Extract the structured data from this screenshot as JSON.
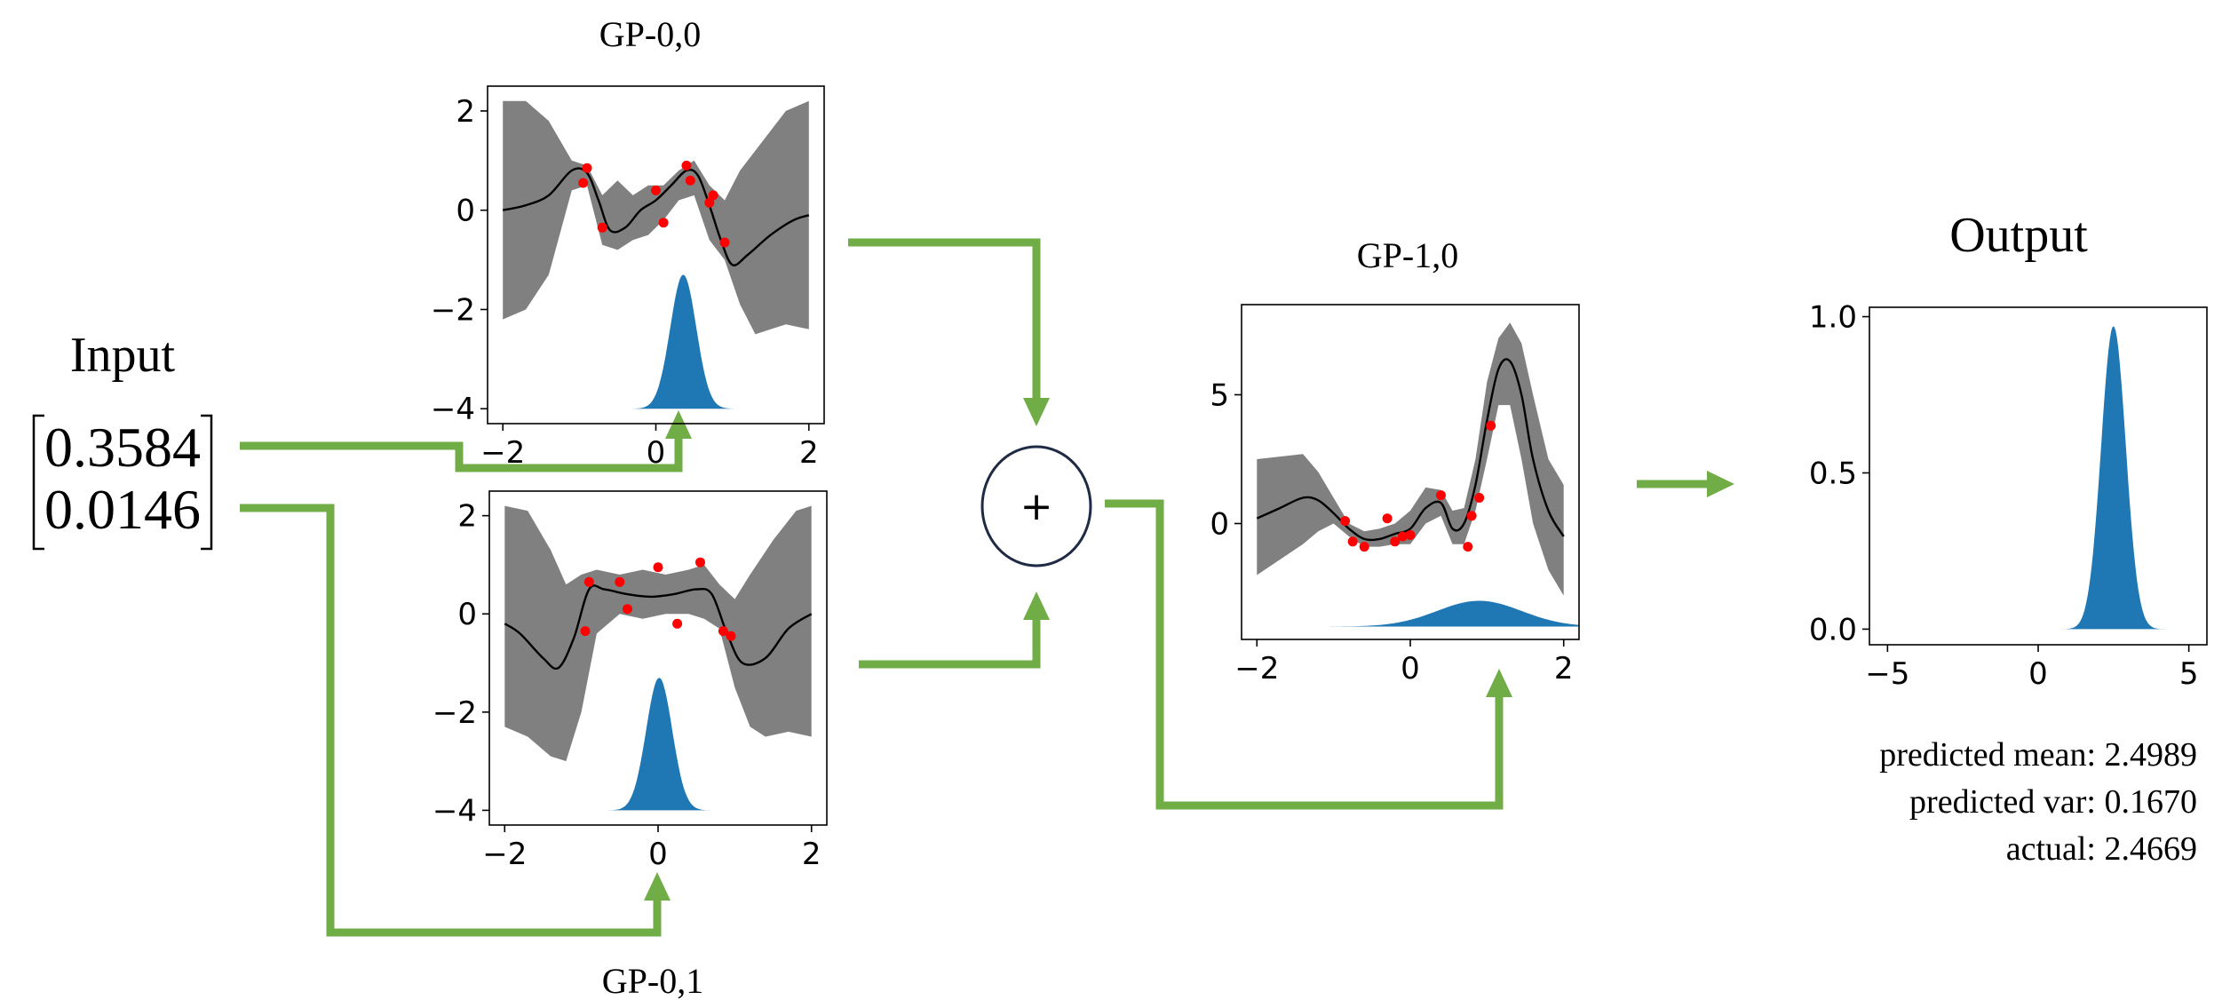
{
  "input": {
    "title": "Input",
    "values": [
      "0.3584",
      "0.0146"
    ]
  },
  "nodes": {
    "gp00": {
      "title": "GP-0,0"
    },
    "gp01": {
      "title": "GP-0,1"
    },
    "gp10": {
      "title": "GP-1,0"
    },
    "sum": {
      "symbol": "+"
    }
  },
  "output": {
    "title": "Output",
    "stats": [
      "predicted mean: 2.4989",
      "predicted var: 0.1670",
      "actual: 2.4669"
    ]
  },
  "colors": {
    "arrow": "#70ad47",
    "band": "#808080",
    "density": "#1f77b4",
    "points": "#ff0000"
  },
  "chart_data": [
    {
      "id": "gp00",
      "type": "line",
      "title": "GP-0,0",
      "xlim": [
        -2.2,
        2.2
      ],
      "ylim": [
        -4.3,
        2.5
      ],
      "xticks": [
        -2,
        0,
        2
      ],
      "yticks": [
        2,
        0,
        -2,
        -4
      ],
      "mean": {
        "x": [
          -2.0,
          -1.7,
          -1.4,
          -1.1,
          -0.9,
          -0.75,
          -0.6,
          -0.4,
          -0.2,
          0.0,
          0.2,
          0.4,
          0.55,
          0.7,
          0.85,
          1.0,
          1.2,
          1.5,
          1.8,
          2.0
        ],
        "y": [
          0.0,
          0.1,
          0.3,
          0.8,
          0.75,
          0.2,
          -0.4,
          -0.35,
          0.0,
          0.2,
          0.5,
          0.8,
          0.7,
          0.1,
          -0.6,
          -1.1,
          -0.9,
          -0.5,
          -0.2,
          -0.1
        ]
      },
      "upper": {
        "x": [
          -2.0,
          -1.7,
          -1.4,
          -1.1,
          -0.9,
          -0.7,
          -0.5,
          -0.3,
          -0.1,
          0.1,
          0.3,
          0.5,
          0.7,
          0.9,
          1.1,
          1.3,
          1.5,
          1.7,
          2.0
        ],
        "y": [
          2.2,
          2.2,
          1.8,
          1.0,
          0.9,
          0.3,
          0.6,
          0.3,
          0.5,
          0.5,
          0.8,
          1.0,
          0.5,
          0.2,
          0.8,
          1.2,
          1.6,
          2.0,
          2.2
        ]
      },
      "lower": {
        "x": [
          -2.0,
          -1.7,
          -1.4,
          -1.1,
          -0.9,
          -0.7,
          -0.5,
          -0.3,
          -0.1,
          0.1,
          0.3,
          0.5,
          0.7,
          0.9,
          1.1,
          1.3,
          1.5,
          1.7,
          2.0
        ],
        "y": [
          -2.2,
          -2.0,
          -1.3,
          0.4,
          0.5,
          -0.7,
          -0.8,
          -0.6,
          -0.5,
          -0.2,
          0.2,
          0.3,
          -0.6,
          -1.0,
          -1.9,
          -2.5,
          -2.4,
          -2.3,
          -2.4
        ]
      },
      "points": {
        "x": [
          -0.9,
          -0.95,
          -0.7,
          0.0,
          0.1,
          0.4,
          0.45,
          0.75,
          0.7,
          0.9
        ],
        "y": [
          0.85,
          0.55,
          -0.35,
          0.4,
          -0.25,
          0.9,
          0.6,
          0.3,
          0.15,
          -0.65
        ]
      },
      "density": {
        "mu": 0.3584,
        "sigma": 0.17,
        "peak": -1.3,
        "base": -4.0
      }
    },
    {
      "id": "gp01",
      "type": "line",
      "title": "GP-0,1",
      "xlim": [
        -2.2,
        2.2
      ],
      "ylim": [
        -4.3,
        2.5
      ],
      "xticks": [
        -2,
        0,
        2
      ],
      "yticks": [
        2,
        0,
        -2,
        -4
      ],
      "mean": {
        "x": [
          -2.0,
          -1.8,
          -1.5,
          -1.3,
          -1.1,
          -0.9,
          -0.7,
          -0.4,
          -0.1,
          0.2,
          0.5,
          0.7,
          0.9,
          1.1,
          1.4,
          1.7,
          2.0
        ],
        "y": [
          -0.2,
          -0.4,
          -0.9,
          -1.1,
          -0.5,
          0.5,
          0.5,
          0.4,
          0.35,
          0.4,
          0.5,
          0.4,
          -0.4,
          -1.0,
          -0.9,
          -0.3,
          0.0
        ]
      },
      "upper": {
        "x": [
          -2.0,
          -1.7,
          -1.4,
          -1.2,
          -1.0,
          -0.8,
          -0.5,
          -0.2,
          0.1,
          0.4,
          0.6,
          0.8,
          1.0,
          1.2,
          1.5,
          1.8,
          2.0
        ],
        "y": [
          2.2,
          2.1,
          1.3,
          0.6,
          0.8,
          0.9,
          0.8,
          0.9,
          0.8,
          0.9,
          1.0,
          0.6,
          0.3,
          0.8,
          1.5,
          2.1,
          2.2
        ]
      },
      "lower": {
        "x": [
          -2.0,
          -1.7,
          -1.4,
          -1.2,
          -1.0,
          -0.8,
          -0.5,
          -0.2,
          0.1,
          0.4,
          0.6,
          0.8,
          1.0,
          1.2,
          1.4,
          1.7,
          2.0
        ],
        "y": [
          -2.3,
          -2.5,
          -2.9,
          -3.0,
          -2.0,
          -0.4,
          0.0,
          -0.1,
          0.0,
          0.0,
          -0.1,
          -0.3,
          -1.5,
          -2.3,
          -2.5,
          -2.4,
          -2.5
        ]
      },
      "points": {
        "x": [
          -0.9,
          -0.95,
          -0.5,
          -0.4,
          0.0,
          0.25,
          0.55,
          0.85,
          0.95
        ],
        "y": [
          0.65,
          -0.35,
          0.65,
          0.1,
          0.95,
          -0.2,
          1.05,
          -0.35,
          -0.45
        ]
      },
      "density": {
        "mu": 0.0146,
        "sigma": 0.17,
        "peak": -1.3,
        "base": -4.0
      }
    },
    {
      "id": "gp10",
      "type": "line",
      "title": "GP-1,0",
      "xlim": [
        -2.2,
        2.2
      ],
      "ylim": [
        -4.5,
        8.5
      ],
      "xticks": [
        -2,
        0,
        2
      ],
      "yticks": [
        5,
        0
      ],
      "mean": {
        "x": [
          -2.0,
          -1.7,
          -1.4,
          -1.2,
          -1.0,
          -0.8,
          -0.6,
          -0.4,
          -0.2,
          0.0,
          0.2,
          0.4,
          0.55,
          0.7,
          0.85,
          1.0,
          1.15,
          1.3,
          1.45,
          1.6,
          1.8,
          2.0
        ],
        "y": [
          0.2,
          0.6,
          1.0,
          0.9,
          0.4,
          -0.2,
          -0.6,
          -0.6,
          -0.4,
          -0.2,
          0.6,
          0.8,
          -0.2,
          0.0,
          1.5,
          4.0,
          6.0,
          6.3,
          5.0,
          2.5,
          0.5,
          -0.5
        ]
      },
      "upper": {
        "x": [
          -2.0,
          -1.7,
          -1.4,
          -1.2,
          -1.0,
          -0.8,
          -0.6,
          -0.4,
          -0.2,
          0.0,
          0.2,
          0.4,
          0.55,
          0.7,
          0.85,
          1.0,
          1.15,
          1.3,
          1.45,
          1.6,
          1.8,
          2.0
        ],
        "y": [
          2.5,
          2.6,
          2.7,
          2.0,
          1.0,
          0.0,
          -0.3,
          -0.2,
          0.0,
          0.5,
          1.4,
          1.3,
          0.5,
          0.6,
          2.5,
          5.5,
          7.2,
          7.8,
          7.0,
          5.0,
          2.5,
          1.5
        ]
      },
      "lower": {
        "x": [
          -2.0,
          -1.7,
          -1.4,
          -1.2,
          -1.0,
          -0.8,
          -0.6,
          -0.4,
          -0.2,
          0.0,
          0.2,
          0.4,
          0.55,
          0.7,
          0.85,
          1.0,
          1.15,
          1.3,
          1.45,
          1.6,
          1.8,
          2.0
        ],
        "y": [
          -2.0,
          -1.4,
          -0.8,
          -0.3,
          0.0,
          -0.5,
          -0.9,
          -0.9,
          -0.8,
          -0.8,
          0.0,
          0.3,
          -0.8,
          -0.8,
          0.5,
          2.5,
          4.6,
          4.6,
          2.5,
          0.0,
          -1.8,
          -2.8
        ]
      },
      "points": {
        "x": [
          -0.85,
          -0.75,
          -0.6,
          -0.3,
          -0.2,
          -0.1,
          0.0,
          0.4,
          0.75,
          0.8,
          0.9,
          1.05
        ],
        "y": [
          0.1,
          -0.7,
          -0.9,
          0.2,
          -0.7,
          -0.5,
          -0.45,
          1.1,
          -0.9,
          0.3,
          1.0,
          3.8
        ]
      },
      "density": {
        "mu": 0.9,
        "sigma": 0.55,
        "peak": -3.0,
        "base": -4.0
      }
    },
    {
      "id": "output",
      "type": "area",
      "title": "Output",
      "xlim": [
        -5.6,
        5.6
      ],
      "ylim": [
        -0.05,
        1.03
      ],
      "xticks": [
        -5,
        0,
        5
      ],
      "yticks": [
        1.0,
        0.5,
        0.0
      ],
      "density": {
        "mu": 2.4989,
        "sigma": 0.4087,
        "peak": 0.97,
        "base": 0.0
      }
    }
  ]
}
